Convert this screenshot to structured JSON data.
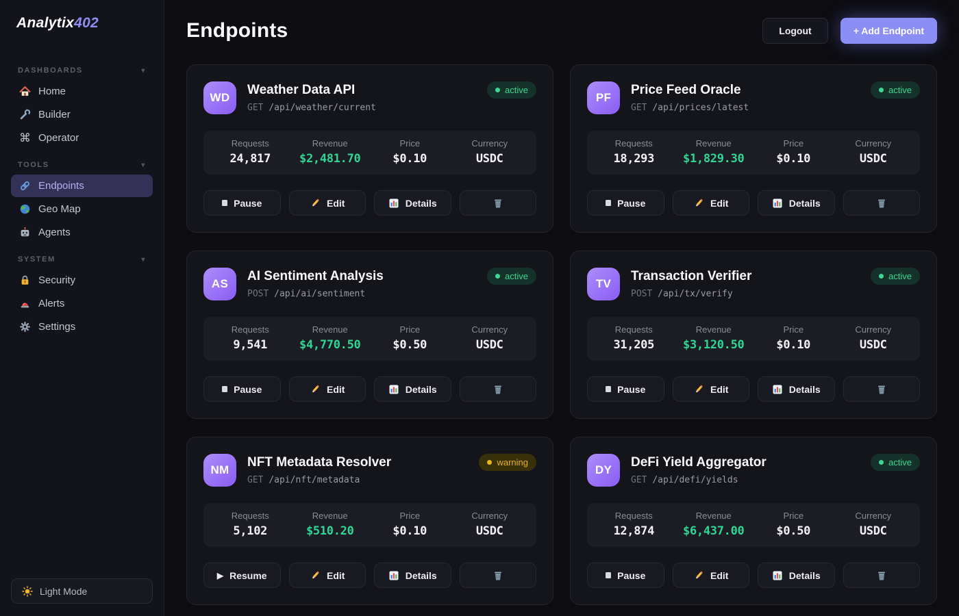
{
  "brand": {
    "name": "Analytix",
    "suffix": "402"
  },
  "sidebar": {
    "sections": [
      {
        "label": "DASHBOARDS",
        "items": [
          {
            "icon": "home-icon",
            "label": "Home",
            "active": false
          },
          {
            "icon": "wrench-icon",
            "label": "Builder",
            "active": false
          },
          {
            "icon": "command-icon",
            "label": "Operator",
            "active": false
          }
        ]
      },
      {
        "label": "TOOLS",
        "items": [
          {
            "icon": "link-icon",
            "label": "Endpoints",
            "active": true
          },
          {
            "icon": "globe-icon",
            "label": "Geo Map",
            "active": false
          },
          {
            "icon": "robot-icon",
            "label": "Agents",
            "active": false
          }
        ]
      },
      {
        "label": "SYSTEM",
        "items": [
          {
            "icon": "lock-icon",
            "label": "Security",
            "active": false
          },
          {
            "icon": "siren-icon",
            "label": "Alerts",
            "active": false
          },
          {
            "icon": "gear-icon",
            "label": "Settings",
            "active": false
          }
        ]
      }
    ],
    "theme_toggle_label": "Light Mode"
  },
  "header": {
    "title": "Endpoints",
    "logout_label": "Logout",
    "add_label": "+ Add Endpoint"
  },
  "stats_labels": {
    "requests": "Requests",
    "revenue": "Revenue",
    "price": "Price",
    "currency": "Currency"
  },
  "actions": {
    "pause": "Pause",
    "resume": "Resume",
    "edit": "Edit",
    "details": "Details"
  },
  "cards": [
    {
      "initials": "WD",
      "title": "Weather Data API",
      "method": "GET",
      "path": "/api/weather/current",
      "status": "active",
      "requests": "24,817",
      "revenue": "$2,481.70",
      "price": "$0.10",
      "currency": "USDC",
      "primary_action": "Pause"
    },
    {
      "initials": "PF",
      "title": "Price Feed Oracle",
      "method": "GET",
      "path": "/api/prices/latest",
      "status": "active",
      "requests": "18,293",
      "revenue": "$1,829.30",
      "price": "$0.10",
      "currency": "USDC",
      "primary_action": "Pause"
    },
    {
      "initials": "AS",
      "title": "AI Sentiment Analysis",
      "method": "POST",
      "path": "/api/ai/sentiment",
      "status": "active",
      "requests": "9,541",
      "revenue": "$4,770.50",
      "price": "$0.50",
      "currency": "USDC",
      "primary_action": "Pause"
    },
    {
      "initials": "TV",
      "title": "Transaction Verifier",
      "method": "POST",
      "path": "/api/tx/verify",
      "status": "active",
      "requests": "31,205",
      "revenue": "$3,120.50",
      "price": "$0.10",
      "currency": "USDC",
      "primary_action": "Pause"
    },
    {
      "initials": "NM",
      "title": "NFT Metadata Resolver",
      "method": "GET",
      "path": "/api/nft/metadata",
      "status": "warning",
      "requests": "5,102",
      "revenue": "$510.20",
      "price": "$0.10",
      "currency": "USDC",
      "primary_action": "Resume"
    },
    {
      "initials": "DY",
      "title": "DeFi Yield Aggregator",
      "method": "GET",
      "path": "/api/defi/yields",
      "status": "active",
      "requests": "12,874",
      "revenue": "$6,437.00",
      "price": "$0.50",
      "currency": "USDC",
      "primary_action": "Pause"
    }
  ],
  "colors": {
    "accent": "#8b8ef4",
    "active": "#34d399",
    "warning": "#eab31f",
    "revenue": "#2fd693"
  }
}
